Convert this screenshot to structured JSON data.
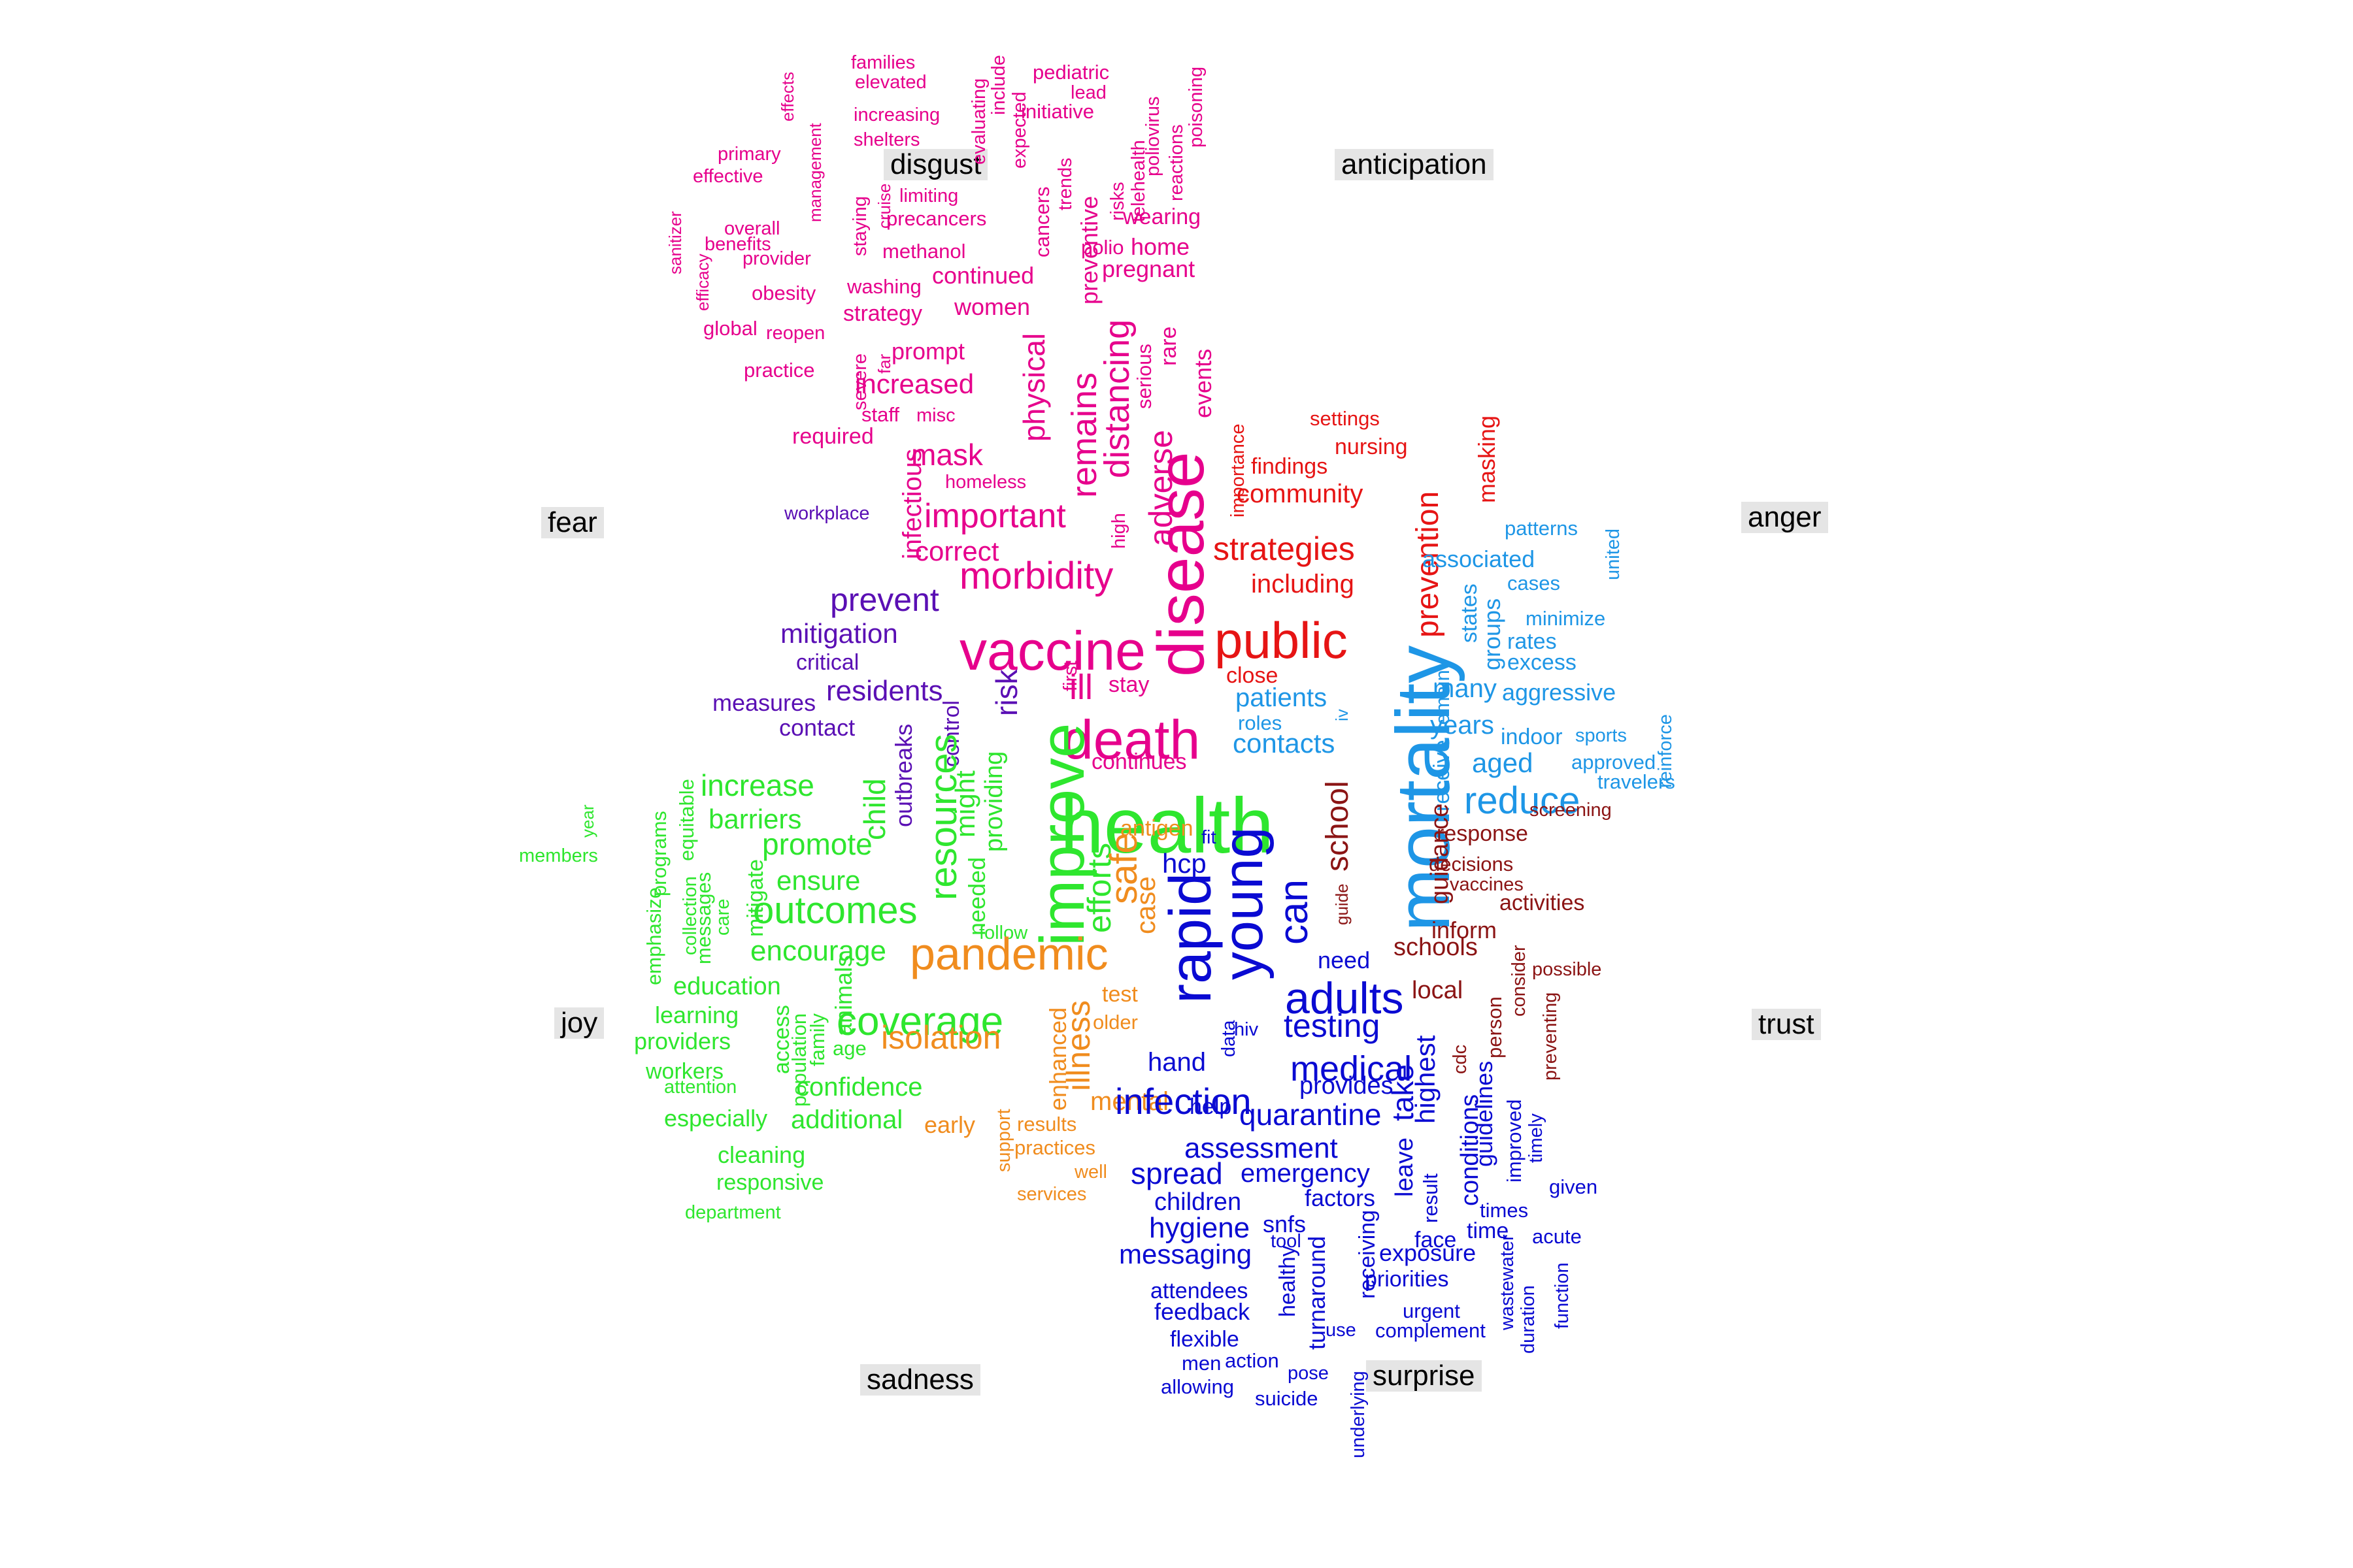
{
  "colors": {
    "disgust": "#e6008c",
    "fear": "#5a0fb4",
    "joy": "#2ee62e",
    "sadness": "#f08c1e",
    "surprise": "#0a0ad2",
    "trust": "#8b1414",
    "anger": "#1e96e6",
    "anticipation": "#e61414"
  },
  "emotion_labels": [
    {
      "key": "disgust",
      "text": "disgust"
    },
    {
      "key": "anticipation",
      "text": "anticipation"
    },
    {
      "key": "fear",
      "text": "fear"
    },
    {
      "key": "anger",
      "text": "anger"
    },
    {
      "key": "joy",
      "text": "joy"
    },
    {
      "key": "trust",
      "text": "trust"
    },
    {
      "key": "sadness",
      "text": "sadness"
    },
    {
      "key": "surprise",
      "text": "surprise"
    }
  ],
  "words": [
    {
      "text": "effects",
      "group": "disgust"
    },
    {
      "text": "families",
      "group": "disgust"
    },
    {
      "text": "elevated",
      "group": "disgust"
    },
    {
      "text": "evaluating",
      "group": "disgust"
    },
    {
      "text": "include",
      "group": "disgust"
    },
    {
      "text": "expected",
      "group": "disgust"
    },
    {
      "text": "pediatric",
      "group": "disgust"
    },
    {
      "text": "lead",
      "group": "disgust"
    },
    {
      "text": "initiative",
      "group": "disgust"
    },
    {
      "text": "poliovirus",
      "group": "disgust"
    },
    {
      "text": "poisoning",
      "group": "disgust"
    },
    {
      "text": "reactions",
      "group": "disgust"
    },
    {
      "text": "increasing",
      "group": "disgust"
    },
    {
      "text": "shelters",
      "group": "disgust"
    },
    {
      "text": "management",
      "group": "disgust"
    },
    {
      "text": "primary",
      "group": "disgust"
    },
    {
      "text": "effective",
      "group": "disgust"
    },
    {
      "text": "sanitizer",
      "group": "disgust"
    },
    {
      "text": "efficacy",
      "group": "disgust"
    },
    {
      "text": "overall",
      "group": "disgust"
    },
    {
      "text": "benefits",
      "group": "disgust"
    },
    {
      "text": "provider",
      "group": "disgust"
    },
    {
      "text": "obesity",
      "group": "disgust"
    },
    {
      "text": "global",
      "group": "disgust"
    },
    {
      "text": "reopen",
      "group": "disgust"
    },
    {
      "text": "practice",
      "group": "disgust"
    },
    {
      "text": "severe",
      "group": "disgust"
    },
    {
      "text": "far",
      "group": "disgust"
    },
    {
      "text": "staying",
      "group": "disgust"
    },
    {
      "text": "cruise",
      "group": "disgust"
    },
    {
      "text": "limiting",
      "group": "disgust"
    },
    {
      "text": "precancers",
      "group": "disgust"
    },
    {
      "text": "methanol",
      "group": "disgust"
    },
    {
      "text": "washing",
      "group": "disgust"
    },
    {
      "text": "strategy",
      "group": "disgust"
    },
    {
      "text": "trends",
      "group": "disgust"
    },
    {
      "text": "cancers",
      "group": "disgust"
    },
    {
      "text": "preventive",
      "group": "disgust"
    },
    {
      "text": "risks",
      "group": "disgust"
    },
    {
      "text": "telehealth",
      "group": "disgust"
    },
    {
      "text": "polio",
      "group": "disgust"
    },
    {
      "text": "home",
      "group": "disgust"
    },
    {
      "text": "wearing",
      "group": "disgust"
    },
    {
      "text": "pregnant",
      "group": "disgust"
    },
    {
      "text": "continued",
      "group": "disgust"
    },
    {
      "text": "women",
      "group": "disgust"
    },
    {
      "text": "prompt",
      "group": "disgust"
    },
    {
      "text": "increased",
      "group": "disgust"
    },
    {
      "text": "staff",
      "group": "disgust"
    },
    {
      "text": "misc",
      "group": "disgust"
    },
    {
      "text": "required",
      "group": "disgust"
    },
    {
      "text": "mask",
      "group": "disgust"
    },
    {
      "text": "homeless",
      "group": "disgust"
    },
    {
      "text": "infectious",
      "group": "disgust"
    },
    {
      "text": "physical",
      "group": "disgust"
    },
    {
      "text": "remains",
      "group": "disgust"
    },
    {
      "text": "distancing",
      "group": "disgust"
    },
    {
      "text": "serious",
      "group": "disgust"
    },
    {
      "text": "rare",
      "group": "disgust"
    },
    {
      "text": "events",
      "group": "disgust"
    },
    {
      "text": "adverse",
      "group": "disgust"
    },
    {
      "text": "important",
      "group": "disgust"
    },
    {
      "text": "correct",
      "group": "disgust"
    },
    {
      "text": "high",
      "group": "disgust"
    },
    {
      "text": "morbidity",
      "group": "disgust"
    },
    {
      "text": "vaccine",
      "group": "disgust"
    },
    {
      "text": "disease",
      "group": "disgust"
    },
    {
      "text": "ill",
      "group": "disgust"
    },
    {
      "text": "first",
      "group": "disgust"
    },
    {
      "text": "stay",
      "group": "disgust"
    },
    {
      "text": "death",
      "group": "disgust"
    },
    {
      "text": "continues",
      "group": "disgust"
    },
    {
      "text": "importance",
      "group": "anticipation"
    },
    {
      "text": "settings",
      "group": "anticipation"
    },
    {
      "text": "nursing",
      "group": "anticipation"
    },
    {
      "text": "findings",
      "group": "anticipation"
    },
    {
      "text": "community",
      "group": "anticipation"
    },
    {
      "text": "masking",
      "group": "anticipation"
    },
    {
      "text": "prevention",
      "group": "anticipation"
    },
    {
      "text": "strategies",
      "group": "anticipation"
    },
    {
      "text": "including",
      "group": "anticipation"
    },
    {
      "text": "public",
      "group": "anticipation"
    },
    {
      "text": "close",
      "group": "anticipation"
    },
    {
      "text": "workplace",
      "group": "fear"
    },
    {
      "text": "prevent",
      "group": "fear"
    },
    {
      "text": "mitigation",
      "group": "fear"
    },
    {
      "text": "critical",
      "group": "fear"
    },
    {
      "text": "residents",
      "group": "fear"
    },
    {
      "text": "measures",
      "group": "fear"
    },
    {
      "text": "contact",
      "group": "fear"
    },
    {
      "text": "risk",
      "group": "fear"
    },
    {
      "text": "outbreaks",
      "group": "fear"
    },
    {
      "text": "control",
      "group": "fear"
    },
    {
      "text": "patterns",
      "group": "anger"
    },
    {
      "text": "united",
      "group": "anger"
    },
    {
      "text": "associated",
      "group": "anger"
    },
    {
      "text": "cases",
      "group": "anger"
    },
    {
      "text": "states",
      "group": "anger"
    },
    {
      "text": "groups",
      "group": "anger"
    },
    {
      "text": "minimize",
      "group": "anger"
    },
    {
      "text": "rates",
      "group": "anger"
    },
    {
      "text": "excess",
      "group": "anger"
    },
    {
      "text": "remain",
      "group": "anger"
    },
    {
      "text": "many",
      "group": "anger"
    },
    {
      "text": "aggressive",
      "group": "anger"
    },
    {
      "text": "reinforce",
      "group": "anger"
    },
    {
      "text": "patients",
      "group": "anger"
    },
    {
      "text": "roles",
      "group": "anger"
    },
    {
      "text": "iv",
      "group": "anger"
    },
    {
      "text": "years",
      "group": "anger"
    },
    {
      "text": "contacts",
      "group": "anger"
    },
    {
      "text": "indoor",
      "group": "anger"
    },
    {
      "text": "sports",
      "group": "anger"
    },
    {
      "text": "receive",
      "group": "anger"
    },
    {
      "text": "aged",
      "group": "anger"
    },
    {
      "text": "approved",
      "group": "anger"
    },
    {
      "text": "reduce",
      "group": "anger"
    },
    {
      "text": "travelers",
      "group": "anger"
    },
    {
      "text": "mortality",
      "group": "anger"
    },
    {
      "text": "year",
      "group": "joy"
    },
    {
      "text": "programs",
      "group": "joy"
    },
    {
      "text": "equitable",
      "group": "joy"
    },
    {
      "text": "members",
      "group": "joy"
    },
    {
      "text": "emphasize",
      "group": "joy"
    },
    {
      "text": "collection",
      "group": "joy"
    },
    {
      "text": "messages",
      "group": "joy"
    },
    {
      "text": "care",
      "group": "joy"
    },
    {
      "text": "mitigate",
      "group": "joy"
    },
    {
      "text": "increase",
      "group": "joy"
    },
    {
      "text": "barriers",
      "group": "joy"
    },
    {
      "text": "child",
      "group": "joy"
    },
    {
      "text": "promote",
      "group": "joy"
    },
    {
      "text": "ensure",
      "group": "joy"
    },
    {
      "text": "resources",
      "group": "joy"
    },
    {
      "text": "outcomes",
      "group": "joy"
    },
    {
      "text": "encourage",
      "group": "joy"
    },
    {
      "text": "might",
      "group": "joy"
    },
    {
      "text": "providing",
      "group": "joy"
    },
    {
      "text": "needed",
      "group": "joy"
    },
    {
      "text": "follow",
      "group": "joy"
    },
    {
      "text": "improve",
      "group": "joy"
    },
    {
      "text": "health",
      "group": "joy"
    },
    {
      "text": "efforts",
      "group": "joy"
    },
    {
      "text": "education",
      "group": "joy"
    },
    {
      "text": "learning",
      "group": "joy"
    },
    {
      "text": "providers",
      "group": "joy"
    },
    {
      "text": "workers",
      "group": "joy"
    },
    {
      "text": "attention",
      "group": "joy"
    },
    {
      "text": "access",
      "group": "joy"
    },
    {
      "text": "population",
      "group": "joy"
    },
    {
      "text": "family",
      "group": "joy"
    },
    {
      "text": "animals",
      "group": "joy"
    },
    {
      "text": "age",
      "group": "joy"
    },
    {
      "text": "coverage",
      "group": "joy"
    },
    {
      "text": "confidence",
      "group": "joy"
    },
    {
      "text": "especially",
      "group": "joy"
    },
    {
      "text": "additional",
      "group": "joy"
    },
    {
      "text": "cleaning",
      "group": "joy"
    },
    {
      "text": "responsive",
      "group": "joy"
    },
    {
      "text": "department",
      "group": "joy"
    },
    {
      "text": "safe",
      "group": "sadness"
    },
    {
      "text": "antigen",
      "group": "sadness"
    },
    {
      "text": "case",
      "group": "sadness"
    },
    {
      "text": "pandemic",
      "group": "sadness"
    },
    {
      "text": "test",
      "group": "sadness"
    },
    {
      "text": "older",
      "group": "sadness"
    },
    {
      "text": "isolation",
      "group": "sadness"
    },
    {
      "text": "enhanced",
      "group": "sadness"
    },
    {
      "text": "illness",
      "group": "sadness"
    },
    {
      "text": "mental",
      "group": "sadness"
    },
    {
      "text": "early",
      "group": "sadness"
    },
    {
      "text": "support",
      "group": "sadness"
    },
    {
      "text": "results",
      "group": "sadness"
    },
    {
      "text": "practices",
      "group": "sadness"
    },
    {
      "text": "well",
      "group": "sadness"
    },
    {
      "text": "services",
      "group": "sadness"
    },
    {
      "text": "school",
      "group": "trust"
    },
    {
      "text": "guidance",
      "group": "trust"
    },
    {
      "text": "response",
      "group": "trust"
    },
    {
      "text": "screening",
      "group": "trust"
    },
    {
      "text": "decisions",
      "group": "trust"
    },
    {
      "text": "vaccines",
      "group": "trust"
    },
    {
      "text": "activities",
      "group": "trust"
    },
    {
      "text": "guide",
      "group": "trust"
    },
    {
      "text": "inform",
      "group": "trust"
    },
    {
      "text": "schools",
      "group": "trust"
    },
    {
      "text": "possible",
      "group": "trust"
    },
    {
      "text": "consider",
      "group": "trust"
    },
    {
      "text": "local",
      "group": "trust"
    },
    {
      "text": "preventing",
      "group": "trust"
    },
    {
      "text": "person",
      "group": "trust"
    },
    {
      "text": "cdc",
      "group": "trust"
    },
    {
      "text": "fit",
      "group": "surprise"
    },
    {
      "text": "hcp",
      "group": "surprise"
    },
    {
      "text": "rapid",
      "group": "surprise"
    },
    {
      "text": "young",
      "group": "surprise"
    },
    {
      "text": "can",
      "group": "surprise"
    },
    {
      "text": "need",
      "group": "surprise"
    },
    {
      "text": "adults",
      "group": "surprise"
    },
    {
      "text": "testing",
      "group": "surprise"
    },
    {
      "text": "medical",
      "group": "surprise"
    },
    {
      "text": "hand",
      "group": "surprise"
    },
    {
      "text": "data",
      "group": "surprise"
    },
    {
      "text": "hiv",
      "group": "surprise"
    },
    {
      "text": "infection",
      "group": "surprise"
    },
    {
      "text": "provides",
      "group": "surprise"
    },
    {
      "text": "take",
      "group": "surprise"
    },
    {
      "text": "highest",
      "group": "surprise"
    },
    {
      "text": "help",
      "group": "surprise"
    },
    {
      "text": "quarantine",
      "group": "surprise"
    },
    {
      "text": "assessment",
      "group": "surprise"
    },
    {
      "text": "spread",
      "group": "surprise"
    },
    {
      "text": "emergency",
      "group": "surprise"
    },
    {
      "text": "leave",
      "group": "surprise"
    },
    {
      "text": "result",
      "group": "surprise"
    },
    {
      "text": "conditions",
      "group": "surprise"
    },
    {
      "text": "guidelines",
      "group": "surprise"
    },
    {
      "text": "improved",
      "group": "surprise"
    },
    {
      "text": "timely",
      "group": "surprise"
    },
    {
      "text": "given",
      "group": "surprise"
    },
    {
      "text": "children",
      "group": "surprise"
    },
    {
      "text": "factors",
      "group": "surprise"
    },
    {
      "text": "times",
      "group": "surprise"
    },
    {
      "text": "hygiene",
      "group": "surprise"
    },
    {
      "text": "snfs",
      "group": "surprise"
    },
    {
      "text": "tool",
      "group": "surprise"
    },
    {
      "text": "receiving",
      "group": "surprise"
    },
    {
      "text": "face",
      "group": "surprise"
    },
    {
      "text": "time",
      "group": "surprise"
    },
    {
      "text": "acute",
      "group": "surprise"
    },
    {
      "text": "messaging",
      "group": "surprise"
    },
    {
      "text": "exposure",
      "group": "surprise"
    },
    {
      "text": "healthy",
      "group": "surprise"
    },
    {
      "text": "turnaround",
      "group": "surprise"
    },
    {
      "text": "priorities",
      "group": "surprise"
    },
    {
      "text": "wastewater",
      "group": "surprise"
    },
    {
      "text": "attendees",
      "group": "surprise"
    },
    {
      "text": "feedback",
      "group": "surprise"
    },
    {
      "text": "urgent",
      "group": "surprise"
    },
    {
      "text": "duration",
      "group": "surprise"
    },
    {
      "text": "function",
      "group": "surprise"
    },
    {
      "text": "use",
      "group": "surprise"
    },
    {
      "text": "complement",
      "group": "surprise"
    },
    {
      "text": "flexible",
      "group": "surprise"
    },
    {
      "text": "men",
      "group": "surprise"
    },
    {
      "text": "action",
      "group": "surprise"
    },
    {
      "text": "pose",
      "group": "surprise"
    },
    {
      "text": "allowing",
      "group": "surprise"
    },
    {
      "text": "suicide",
      "group": "surprise"
    },
    {
      "text": "underlying",
      "group": "surprise"
    }
  ]
}
